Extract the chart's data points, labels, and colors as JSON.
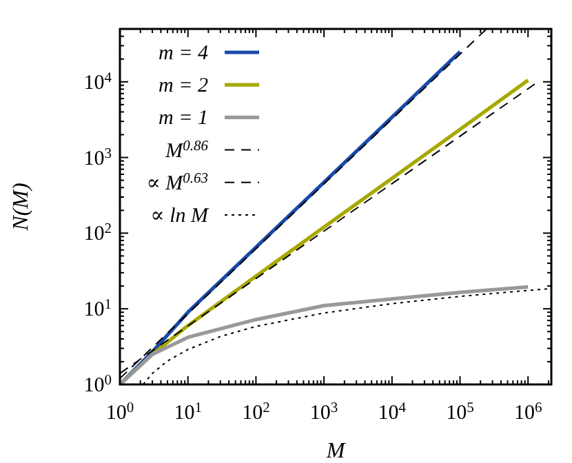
{
  "chart_data": {
    "type": "line",
    "xlabel": "M",
    "ylabel": "N(M)",
    "log": "xy",
    "xlim": [
      1,
      2200000
    ],
    "ylim": [
      1,
      50000
    ],
    "xticks": [
      {
        "value": 1,
        "label": "10$^{0}$"
      },
      {
        "value": 10,
        "label": "10$^{1}$"
      },
      {
        "value": 100,
        "label": "10$^{2}$"
      },
      {
        "value": 1000,
        "label": "10$^{3}$"
      },
      {
        "value": 10000,
        "label": "10$^{4}$"
      },
      {
        "value": 100000,
        "label": "10$^{5}$"
      },
      {
        "value": 1000000,
        "label": "10$^{6}$"
      },
      {
        "value": 2,
        "label": null
      },
      {
        "value": 3,
        "label": null
      },
      {
        "value": 4,
        "label": null
      },
      {
        "value": 5,
        "label": null
      },
      {
        "value": 6,
        "label": null
      },
      {
        "value": 7,
        "label": null
      },
      {
        "value": 8,
        "label": null
      },
      {
        "value": 9,
        "label": null
      },
      {
        "value": 20,
        "label": null
      },
      {
        "value": 30,
        "label": null
      },
      {
        "value": 40,
        "label": null
      },
      {
        "value": 50,
        "label": null
      },
      {
        "value": 60,
        "label": null
      },
      {
        "value": 70,
        "label": null
      },
      {
        "value": 80,
        "label": null
      },
      {
        "value": 90,
        "label": null
      },
      {
        "value": 200,
        "label": null
      },
      {
        "value": 300,
        "label": null
      },
      {
        "value": 400,
        "label": null
      },
      {
        "value": 500,
        "label": null
      },
      {
        "value": 600,
        "label": null
      },
      {
        "value": 700,
        "label": null
      },
      {
        "value": 800,
        "label": null
      },
      {
        "value": 900,
        "label": null
      },
      {
        "value": 2000,
        "label": null
      },
      {
        "value": 3000,
        "label": null
      },
      {
        "value": 4000,
        "label": null
      },
      {
        "value": 5000,
        "label": null
      },
      {
        "value": 6000,
        "label": null
      },
      {
        "value": 7000,
        "label": null
      },
      {
        "value": 8000,
        "label": null
      },
      {
        "value": 9000,
        "label": null
      },
      {
        "value": 20000,
        "label": null
      },
      {
        "value": 30000,
        "label": null
      },
      {
        "value": 40000,
        "label": null
      },
      {
        "value": 50000,
        "label": null
      },
      {
        "value": 60000,
        "label": null
      },
      {
        "value": 70000,
        "label": null
      },
      {
        "value": 80000,
        "label": null
      },
      {
        "value": 90000,
        "label": null
      },
      {
        "value": 200000,
        "label": null
      },
      {
        "value": 300000,
        "label": null
      },
      {
        "value": 400000,
        "label": null
      },
      {
        "value": 500000,
        "label": null
      },
      {
        "value": 600000,
        "label": null
      },
      {
        "value": 700000,
        "label": null
      },
      {
        "value": 800000,
        "label": null
      },
      {
        "value": 900000,
        "label": null
      },
      {
        "value": 2000000,
        "label": null
      }
    ],
    "yticks": [
      {
        "value": 1,
        "label": "10$^{0}$"
      },
      {
        "value": 10,
        "label": "10$^{1}$"
      },
      {
        "value": 100,
        "label": "10$^{2}$"
      },
      {
        "value": 1000,
        "label": "10$^{3}$"
      },
      {
        "value": 10000,
        "label": "10$^{4}$"
      },
      {
        "value": 2,
        "label": null
      },
      {
        "value": 3,
        "label": null
      },
      {
        "value": 4,
        "label": null
      },
      {
        "value": 5,
        "label": null
      },
      {
        "value": 6,
        "label": null
      },
      {
        "value": 7,
        "label": null
      },
      {
        "value": 8,
        "label": null
      },
      {
        "value": 9,
        "label": null
      },
      {
        "value": 20,
        "label": null
      },
      {
        "value": 30,
        "label": null
      },
      {
        "value": 40,
        "label": null
      },
      {
        "value": 50,
        "label": null
      },
      {
        "value": 60,
        "label": null
      },
      {
        "value": 70,
        "label": null
      },
      {
        "value": 80,
        "label": null
      },
      {
        "value": 90,
        "label": null
      },
      {
        "value": 200,
        "label": null
      },
      {
        "value": 300,
        "label": null
      },
      {
        "value": 400,
        "label": null
      },
      {
        "value": 500,
        "label": null
      },
      {
        "value": 600,
        "label": null
      },
      {
        "value": 700,
        "label": null
      },
      {
        "value": 800,
        "label": null
      },
      {
        "value": 900,
        "label": null
      },
      {
        "value": 2000,
        "label": null
      },
      {
        "value": 3000,
        "label": null
      },
      {
        "value": 4000,
        "label": null
      },
      {
        "value": 5000,
        "label": null
      },
      {
        "value": 6000,
        "label": null
      },
      {
        "value": 7000,
        "label": null
      },
      {
        "value": 8000,
        "label": null
      },
      {
        "value": 9000,
        "label": null
      },
      {
        "value": 20000,
        "label": null
      },
      {
        "value": 30000,
        "label": null
      },
      {
        "value": 40000,
        "label": null
      }
    ],
    "legend": "top left",
    "grid": false,
    "series": [
      {
        "name": "m = 4",
        "color": "#1a4aa8",
        "line_style": "solid",
        "x": [
          1,
          3,
          10,
          100,
          1000,
          10000,
          100000
        ],
        "values": [
          1,
          2.7,
          9,
          65,
          470,
          3400,
          25000
        ]
      },
      {
        "name": "m = 2",
        "color": "#a8a800",
        "line_style": "solid",
        "x": [
          1,
          3,
          10,
          100,
          1000,
          10000,
          100000,
          1000000
        ],
        "values": [
          1,
          2.5,
          6,
          27,
          120,
          530,
          2350,
          10500
        ]
      },
      {
        "name": "m = 1",
        "color": "#999999",
        "line_style": "solid",
        "x": [
          1,
          3,
          10,
          100,
          1000,
          10000,
          100000,
          1000000
        ],
        "values": [
          1,
          2.5,
          4.2,
          7.2,
          11,
          13.5,
          16.5,
          19.5
        ]
      },
      {
        "name": "M$^{0.86}$",
        "color": "#000000",
        "line_style": "dashed",
        "x": [
          1,
          245000
        ],
        "values": [
          1.2,
          50000
        ]
      },
      {
        "name": "∝ M$^{0.63}$",
        "color": "#000000",
        "line_style": "dashed",
        "x": [
          1,
          1400000
        ],
        "values": [
          1.4,
          10000
        ]
      },
      {
        "name": "∝ ln M",
        "color": "#000000",
        "line_style": "dotted",
        "x": [
          2.2,
          3,
          5,
          10,
          30,
          100,
          1000,
          10000,
          100000,
          1000000,
          2200000
        ],
        "values": [
          1,
          1.4,
          2.04,
          2.9,
          4.3,
          5.85,
          8.8,
          11.7,
          14.6,
          17.5,
          18.5
        ]
      }
    ]
  }
}
